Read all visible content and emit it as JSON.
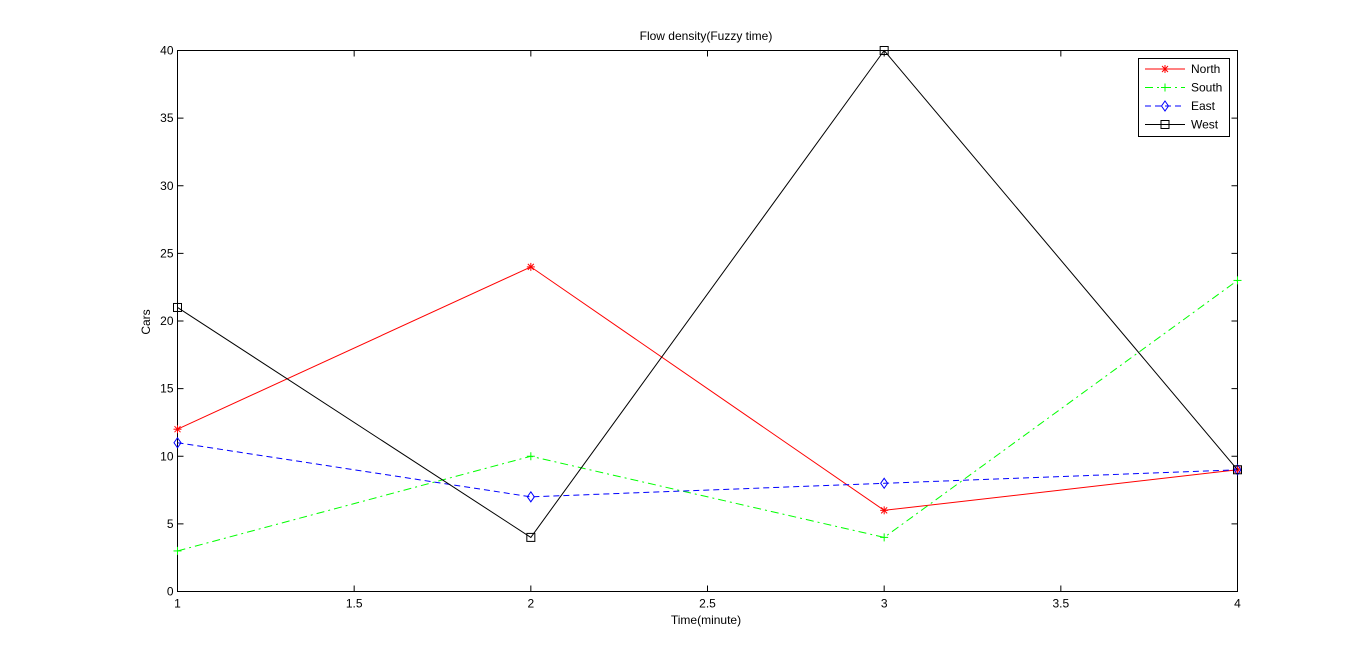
{
  "chart_data": {
    "type": "line",
    "title": "Flow density(Fuzzy time)",
    "xlabel": "Time(minute)",
    "ylabel": "Cars",
    "xlim": [
      1,
      4
    ],
    "ylim": [
      0,
      40
    ],
    "xticks": [
      "1",
      "1.5",
      "2",
      "2.5",
      "3",
      "3.5",
      "4"
    ],
    "yticks": [
      "0",
      "5",
      "10",
      "15",
      "20",
      "25",
      "30",
      "35",
      "40"
    ],
    "x": [
      1,
      2,
      3,
      4
    ],
    "grid": false,
    "legend_position": "top-right",
    "series": [
      {
        "name": "North",
        "values": [
          12,
          24,
          6,
          9
        ],
        "color": "#ff0000",
        "dash": "solid",
        "marker": "asterisk"
      },
      {
        "name": "South",
        "values": [
          3,
          10,
          4,
          23
        ],
        "color": "#00ff00",
        "dash": "dash-dot",
        "marker": "plus"
      },
      {
        "name": "East",
        "values": [
          11,
          7,
          8,
          9
        ],
        "color": "#0000ff",
        "dash": "dashed",
        "marker": "diamond"
      },
      {
        "name": "West",
        "values": [
          21,
          4,
          40,
          9
        ],
        "color": "#000000",
        "dash": "solid",
        "marker": "square"
      }
    ]
  }
}
